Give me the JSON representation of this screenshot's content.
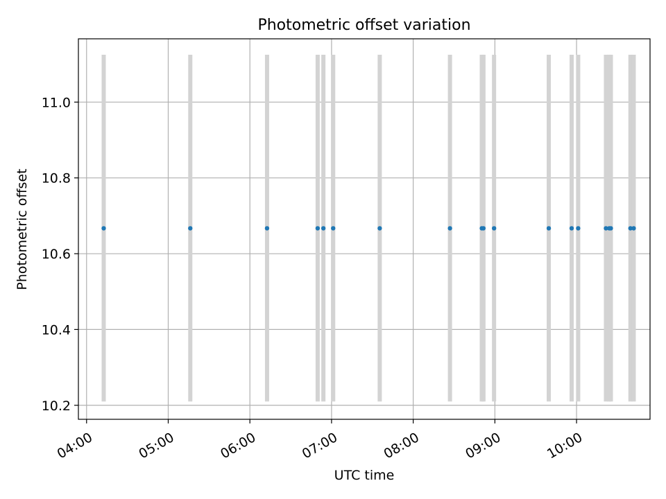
{
  "chart_data": {
    "type": "scatter",
    "title": "Photometric offset variation",
    "xlabel": "UTC time",
    "ylabel": "Photometric offset",
    "xlim_hours": [
      3.9,
      10.9
    ],
    "ylim": [
      10.163,
      11.167
    ],
    "grid": true,
    "x_ticks": [
      {
        "hour": 4,
        "label": "04:00"
      },
      {
        "hour": 5,
        "label": "05:00"
      },
      {
        "hour": 6,
        "label": "06:00"
      },
      {
        "hour": 7,
        "label": "07:00"
      },
      {
        "hour": 8,
        "label": "08:00"
      },
      {
        "hour": 9,
        "label": "09:00"
      },
      {
        "hour": 10,
        "label": "10:00"
      }
    ],
    "y_ticks": [
      {
        "value": 10.2,
        "label": "10.2"
      },
      {
        "value": 10.4,
        "label": "10.4"
      },
      {
        "value": 10.6,
        "label": "10.6"
      },
      {
        "value": 10.8,
        "label": "10.8"
      },
      {
        "value": 11.0,
        "label": "11.0"
      }
    ],
    "band_range": [
      10.21,
      11.125
    ],
    "band_color": "#d3d3d3",
    "point_color": "#1f77b4",
    "series": [
      {
        "name": "Photometric offset",
        "x_hours": [
          4.21,
          5.27,
          6.21,
          6.83,
          6.9,
          7.02,
          7.59,
          8.45,
          8.84,
          8.86,
          8.99,
          9.66,
          9.94,
          10.02,
          10.36,
          10.4,
          10.42,
          10.66,
          10.7
        ],
        "y": [
          10.667,
          10.667,
          10.667,
          10.667,
          10.667,
          10.667,
          10.667,
          10.667,
          10.667,
          10.667,
          10.667,
          10.667,
          10.667,
          10.667,
          10.667,
          10.667,
          10.667,
          10.667,
          10.667
        ]
      }
    ]
  }
}
